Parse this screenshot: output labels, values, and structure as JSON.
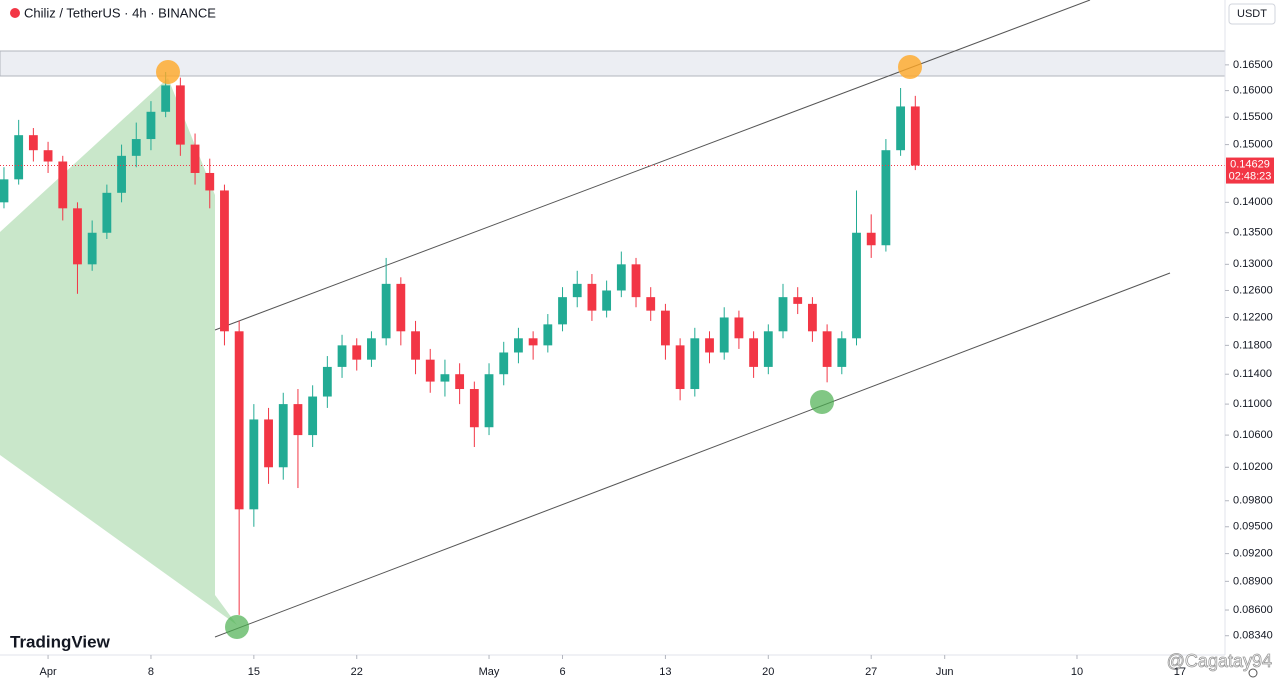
{
  "chart_data": {
    "type": "candlestick",
    "title": "Chiliz / TetherUS · 4h · BINANCE",
    "currency_button": "USDT",
    "logo": "TradingView",
    "watermark": "@Cagatay94",
    "current_price": 0.14629,
    "countdown": "02:48:23",
    "log": true,
    "up_color": "#22ab94",
    "down_color": "#f23645",
    "xlim": [
      -3.27,
      80.07
    ],
    "ylim": [
      0.0815,
      0.1783
    ],
    "xticks": [
      {
        "value": 0,
        "label": "Apr"
      },
      {
        "value": 7,
        "label": "8"
      },
      {
        "value": 14,
        "label": "15"
      },
      {
        "value": 21,
        "label": "22"
      },
      {
        "value": 30,
        "label": "May"
      },
      {
        "value": 35,
        "label": "6"
      },
      {
        "value": 42,
        "label": "13"
      },
      {
        "value": 49,
        "label": "20"
      },
      {
        "value": 56,
        "label": "27"
      },
      {
        "value": 61,
        "label": "Jun"
      },
      {
        "value": 70,
        "label": "10"
      },
      {
        "value": 77,
        "label": "17"
      }
    ],
    "yticks": [
      {
        "value": 0.165,
        "label": "0.16500"
      },
      {
        "value": 0.16,
        "label": "0.16000"
      },
      {
        "value": 0.155,
        "label": "0.15500"
      },
      {
        "value": 0.15,
        "label": "0.15000"
      },
      {
        "value": 0.14,
        "label": "0.14000"
      },
      {
        "value": 0.135,
        "label": "0.13500"
      },
      {
        "value": 0.13,
        "label": "0.13000"
      },
      {
        "value": 0.126,
        "label": "0.12600"
      },
      {
        "value": 0.122,
        "label": "0.12200"
      },
      {
        "value": 0.118,
        "label": "0.11800"
      },
      {
        "value": 0.114,
        "label": "0.11400"
      },
      {
        "value": 0.11,
        "label": "0.11000"
      },
      {
        "value": 0.106,
        "label": "0.10600"
      },
      {
        "value": 0.102,
        "label": "0.10200"
      },
      {
        "value": 0.098,
        "label": "0.09800"
      },
      {
        "value": 0.095,
        "label": "0.09500"
      },
      {
        "value": 0.092,
        "label": "0.09200"
      },
      {
        "value": 0.089,
        "label": "0.08900"
      },
      {
        "value": 0.086,
        "label": "0.08600"
      },
      {
        "value": 0.0834,
        "label": "0.08340"
      }
    ],
    "x": [
      -3,
      -2,
      -1,
      0,
      1,
      2,
      3,
      4,
      5,
      6,
      7,
      8,
      9,
      10,
      11,
      12,
      13,
      14,
      15,
      16,
      17,
      18,
      19,
      20,
      21,
      22,
      23,
      24,
      25,
      26,
      27,
      28,
      29,
      30,
      31,
      32,
      33,
      34,
      35,
      36,
      37,
      38,
      39,
      40,
      41,
      42,
      43,
      44,
      45,
      46,
      47,
      48,
      49,
      50,
      51,
      52,
      53,
      54,
      55,
      56,
      57,
      58,
      59
    ],
    "open": [
      0.14,
      0.1439,
      0.1517,
      0.149,
      0.147,
      0.139,
      0.13,
      0.135,
      0.1416,
      0.148,
      0.151,
      0.156,
      0.161,
      0.15,
      0.145,
      0.142,
      0.12,
      0.097,
      0.108,
      0.102,
      0.11,
      0.106,
      0.111,
      0.115,
      0.118,
      0.116,
      0.119,
      0.127,
      0.12,
      0.116,
      0.113,
      0.114,
      0.112,
      0.107,
      0.114,
      0.117,
      0.119,
      0.118,
      0.121,
      0.125,
      0.127,
      0.123,
      0.126,
      0.13,
      0.125,
      0.123,
      0.118,
      0.112,
      0.119,
      0.117,
      0.122,
      0.119,
      0.115,
      0.12,
      0.125,
      0.124,
      0.12,
      0.115,
      0.119,
      0.135,
      0.133,
      0.149,
      0.157
    ],
    "high": [
      0.146,
      0.1545,
      0.153,
      0.1505,
      0.148,
      0.14,
      0.137,
      0.143,
      0.15,
      0.154,
      0.158,
      0.1636,
      0.1625,
      0.152,
      0.1475,
      0.143,
      0.1215,
      0.11,
      0.1095,
      0.1115,
      0.112,
      0.1125,
      0.1165,
      0.1195,
      0.119,
      0.12,
      0.131,
      0.128,
      0.1215,
      0.1175,
      0.116,
      0.1155,
      0.113,
      0.1155,
      0.1185,
      0.1205,
      0.12,
      0.1225,
      0.1265,
      0.129,
      0.1285,
      0.1275,
      0.132,
      0.131,
      0.1265,
      0.124,
      0.119,
      0.1205,
      0.12,
      0.1235,
      0.123,
      0.12,
      0.121,
      0.127,
      0.1265,
      0.125,
      0.121,
      0.12,
      0.142,
      0.138,
      0.151,
      0.1605,
      0.159
    ],
    "low": [
      0.139,
      0.143,
      0.147,
      0.145,
      0.137,
      0.1255,
      0.129,
      0.134,
      0.14,
      0.146,
      0.149,
      0.155,
      0.148,
      0.143,
      0.139,
      0.118,
      0.0855,
      0.095,
      0.1,
      0.1005,
      0.0995,
      0.1045,
      0.1095,
      0.1135,
      0.1145,
      0.115,
      0.118,
      0.118,
      0.114,
      0.1115,
      0.111,
      0.11,
      0.1045,
      0.106,
      0.1125,
      0.1155,
      0.116,
      0.117,
      0.12,
      0.1235,
      0.1215,
      0.122,
      0.125,
      0.1235,
      0.1215,
      0.116,
      0.1105,
      0.111,
      0.1155,
      0.116,
      0.1175,
      0.1135,
      0.114,
      0.119,
      0.1225,
      0.1185,
      0.1129,
      0.114,
      0.118,
      0.131,
      0.132,
      0.148,
      0.1455
    ],
    "close": [
      0.1439,
      0.1517,
      0.149,
      0.147,
      0.139,
      0.13,
      0.135,
      0.1416,
      0.148,
      0.151,
      0.156,
      0.161,
      0.15,
      0.145,
      0.142,
      0.12,
      0.097,
      0.108,
      0.102,
      0.11,
      0.106,
      0.111,
      0.115,
      0.118,
      0.116,
      0.119,
      0.127,
      0.12,
      0.116,
      0.113,
      0.114,
      0.112,
      0.107,
      0.114,
      0.117,
      0.119,
      0.118,
      0.121,
      0.125,
      0.127,
      0.123,
      0.126,
      0.13,
      0.125,
      0.123,
      0.118,
      0.112,
      0.119,
      0.117,
      0.122,
      0.119,
      0.115,
      0.12,
      0.125,
      0.124,
      0.12,
      0.115,
      0.119,
      0.135,
      0.133,
      0.149,
      0.157,
      0.14629
    ]
  }
}
